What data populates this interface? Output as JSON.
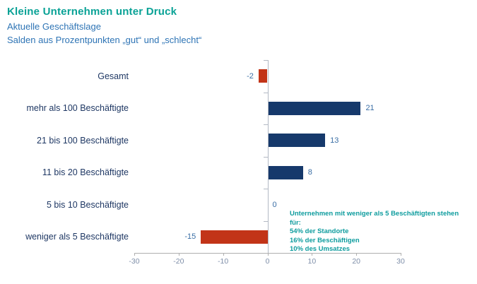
{
  "header": {
    "title": "Kleine Unternehmen unter Druck",
    "subtitle1": "Aktuelle Geschäftslage",
    "subtitle2": "Salden aus Prozentpunkten „gut“ und „schlecht“"
  },
  "chart_data": {
    "type": "bar",
    "orientation": "horizontal",
    "title": "Kleine Unternehmen unter Druck",
    "subtitle": "Aktuelle Geschäftslage — Salden aus Prozentpunkten „gut“ und „schlecht“",
    "categories": [
      "Gesamt",
      "mehr als 100 Beschäftigte",
      "21 bis 100 Beschäftigte",
      "11 bis 20 Beschäftigte",
      "5 bis 10 Beschäftigte",
      "weniger als 5 Beschäftigte"
    ],
    "values": [
      -2,
      21,
      13,
      8,
      0,
      -15
    ],
    "value_labels": [
      "-2",
      "21",
      "13",
      "8",
      "0",
      "-15"
    ],
    "xlim": [
      -30,
      30
    ],
    "x_ticks": [
      -30,
      -20,
      -10,
      0,
      10,
      20,
      30
    ],
    "grid": false,
    "legend": "none",
    "colors": {
      "positive_bar": "#16396B",
      "negative_bar": "#C23418",
      "category_text": "#1F3864",
      "value_text": "#3A6EA5",
      "axis_text": "#7E8EA8",
      "title_text": "#0AA296",
      "subtitle_text": "#2E74B5",
      "annotation_text": "#0E9C9E"
    },
    "annotation": {
      "title": "Unternehmen mit weniger als 5 Beschäftigten stehen für:",
      "lines": [
        "54% der Standorte",
        "16% der Beschäftigen",
        "10% des Umsatzes"
      ]
    }
  }
}
